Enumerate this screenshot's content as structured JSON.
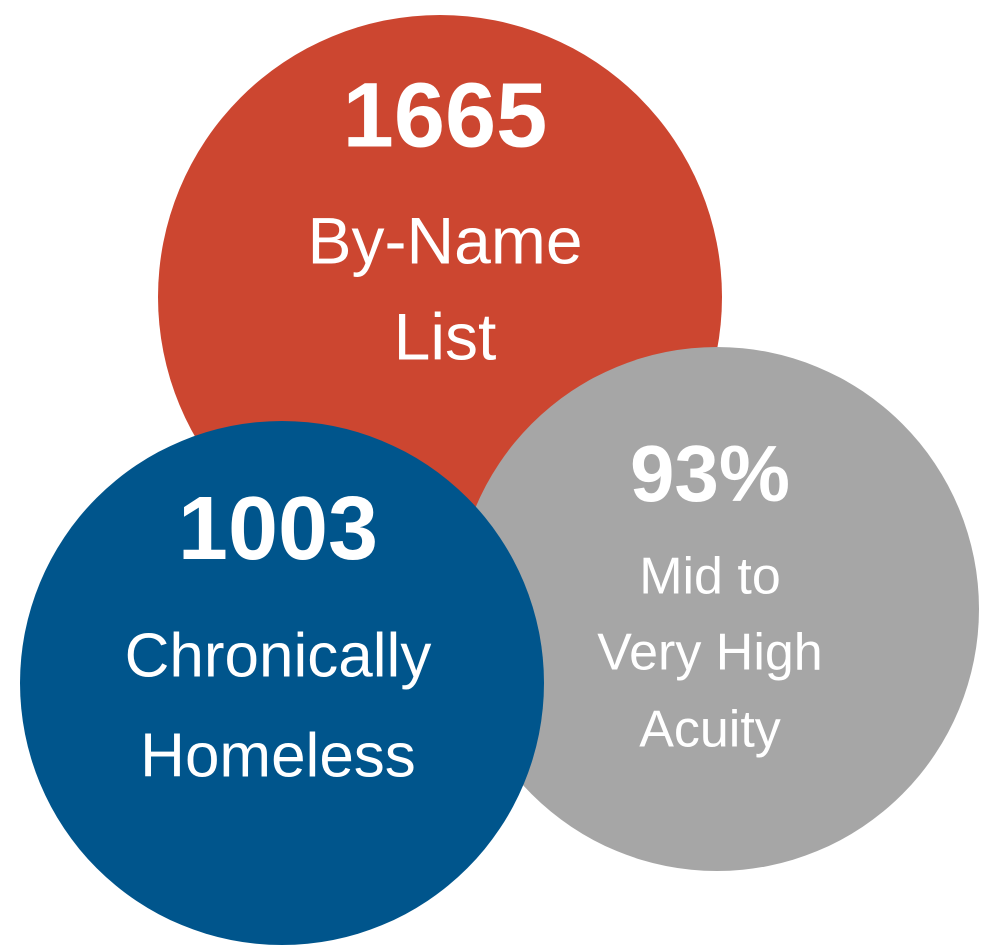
{
  "circles": [
    {
      "number": "1665",
      "label_lines": [
        "By-Name",
        "List"
      ]
    },
    {
      "number": "93%",
      "label_lines": [
        "Mid to",
        "Very High",
        "Acuity"
      ]
    },
    {
      "number": "1003",
      "label_lines": [
        "Chronically",
        "Homeless"
      ]
    }
  ]
}
